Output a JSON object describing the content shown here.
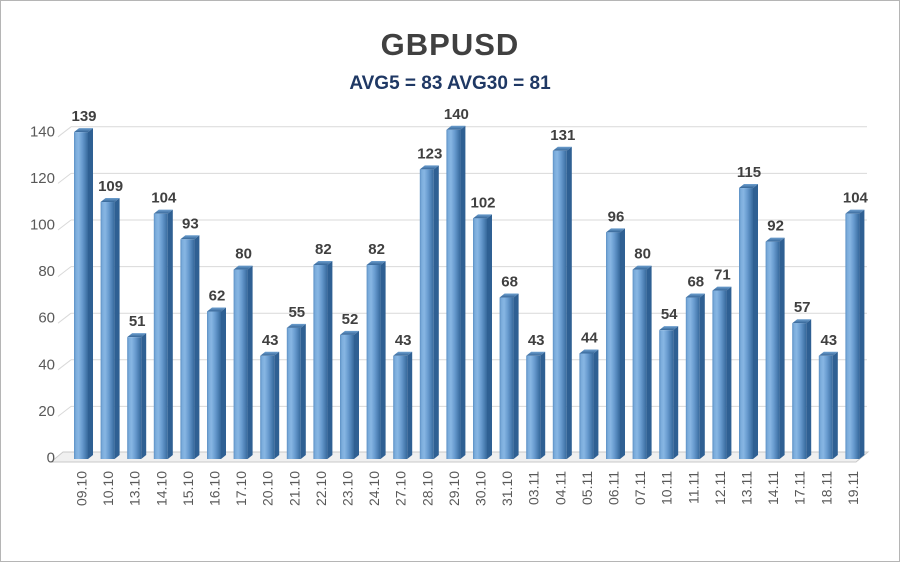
{
  "chart": {
    "title": "GBPUSD",
    "subtitle": "AVG5 = 83 AVG30 = 81"
  },
  "chart_data": {
    "type": "bar",
    "title": "GBPUSD",
    "subtitle": "AVG5 = 83 AVG30 = 81",
    "categories": [
      "09.10",
      "10.10",
      "13.10",
      "14.10",
      "15.10",
      "16.10",
      "17.10",
      "20.10",
      "21.10",
      "22.10",
      "23.10",
      "24.10",
      "27.10",
      "28.10",
      "29.10",
      "30.10",
      "31.10",
      "03.11",
      "04.11",
      "05.11",
      "06.11",
      "07.11",
      "10.11",
      "11.11",
      "12.11",
      "13.11",
      "14.11",
      "17.11",
      "18.11",
      "19.11"
    ],
    "values": [
      139,
      109,
      51,
      104,
      93,
      62,
      80,
      43,
      55,
      82,
      52,
      82,
      43,
      123,
      140,
      102,
      68,
      43,
      131,
      44,
      96,
      80,
      54,
      68,
      71,
      115,
      92,
      57,
      43,
      104
    ],
    "avg5": 83,
    "avg30": 81,
    "xlabel": "",
    "ylabel": "",
    "ylim": [
      0,
      140
    ],
    "yticks": [
      0,
      20,
      40,
      60,
      80,
      100,
      120,
      140
    ],
    "grid": true,
    "legend_position": "none",
    "data_labels": true,
    "style": "3d-column",
    "colors": {
      "background": "#ffffff",
      "frame_border": "#b5b5b5",
      "title": "#404040",
      "subtitle": "#1f3864",
      "data_label": "#404040",
      "tick_label": "#595959",
      "gridline": "#d9d9d9",
      "floor_fill": "#f0f0f0",
      "floor_stroke": "#c9c9c9",
      "bar_face_stops": [
        {
          "offset": "0%",
          "color": "#5c90c4"
        },
        {
          "offset": "14%",
          "color": "#7cadDC"
        },
        {
          "offset": "32%",
          "color": "#87b6e3"
        },
        {
          "offset": "58%",
          "color": "#699cd0"
        },
        {
          "offset": "82%",
          "color": "#4c7fb3"
        },
        {
          "offset": "93%",
          "color": "#3e71a4"
        },
        {
          "offset": "100%",
          "color": "#38699c"
        }
      ],
      "bar_cap_top": "#6d9fcf",
      "bar_cap_bottom": "#356597",
      "bar_side": "#2f6093"
    }
  }
}
